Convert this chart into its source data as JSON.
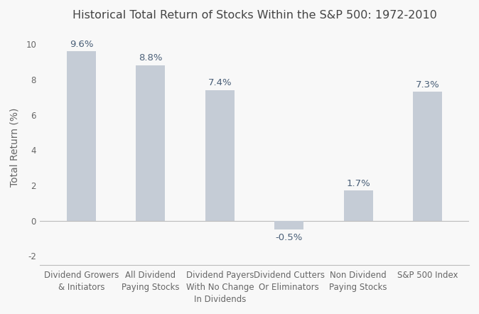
{
  "title": "Historical Total Return of Stocks Within the S&P 500: 1972-2010",
  "categories": [
    "Dividend Growers\n& Initiators",
    "All Dividend\nPaying Stocks",
    "Dividend Payers\nWith No Change\nIn Dividends",
    "Dividend Cutters\nOr Eliminators",
    "Non Dividend\nPaying Stocks",
    "S&P 500 Index"
  ],
  "values": [
    9.6,
    8.8,
    7.4,
    -0.5,
    1.7,
    7.3
  ],
  "labels": [
    "9.6%",
    "8.8%",
    "7.4%",
    "-0.5%",
    "1.7%",
    "7.3%"
  ],
  "bar_color": "#c5ccd6",
  "label_color": "#4a5f78",
  "title_color": "#444444",
  "ylabel": "Total Return (%)",
  "ylim": [
    -2.5,
    10.8
  ],
  "yticks": [
    -2,
    0,
    2,
    4,
    6,
    8,
    10
  ],
  "background_color": "#f8f8f8",
  "title_fontsize": 11.5,
  "label_fontsize": 9.5,
  "ylabel_fontsize": 10,
  "tick_fontsize": 8.5,
  "bar_width": 0.42
}
